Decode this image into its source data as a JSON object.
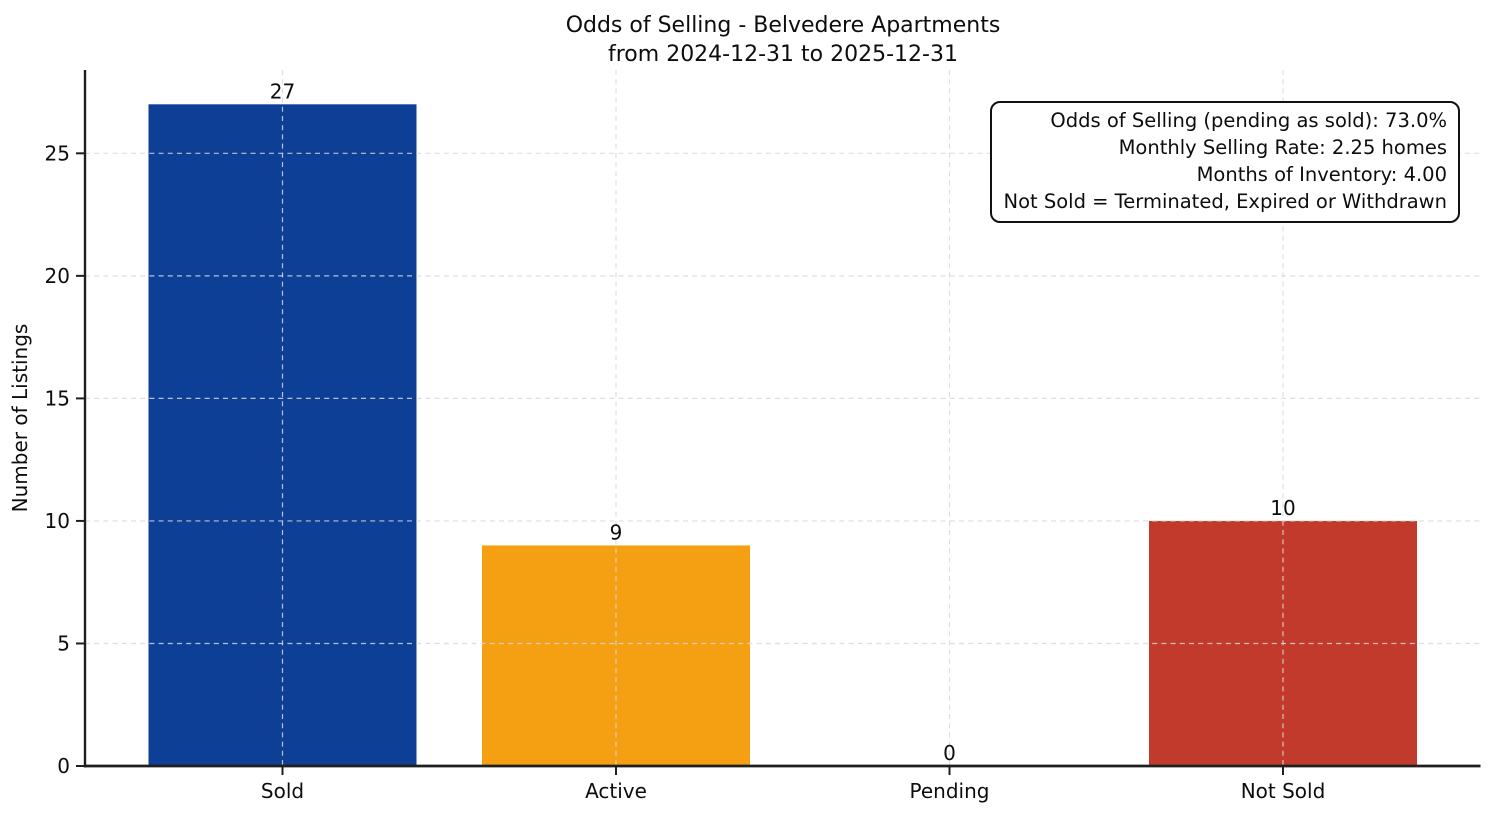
{
  "chart_data": {
    "type": "bar",
    "title_line1": "Odds of Selling - Belvedere Apartments",
    "title_line2": "from 2024-12-31 to 2025-12-31",
    "categories": [
      "Sold",
      "Active",
      "Pending",
      "Not Sold"
    ],
    "values": [
      27,
      9,
      0,
      10
    ],
    "value_labels": [
      "27",
      "9",
      "0",
      "10"
    ],
    "bar_colors": [
      "#0e3f96",
      "#f4a012",
      "#808080",
      "#c13a2c"
    ],
    "xlabel": "",
    "ylabel": "Number of Listings",
    "yticks": [
      0,
      5,
      10,
      15,
      20,
      25
    ],
    "ylim": [
      0,
      28.4
    ],
    "grid": true,
    "grid_style": "dashed",
    "legend": "none",
    "annotation_lines": [
      "Odds of Selling (pending as sold): 73.0%",
      "Monthly Selling Rate: 2.25 homes",
      "Months of Inventory: 4.00",
      "Not Sold = Terminated, Expired or Withdrawn"
    ],
    "style_colors": {
      "grid": "#d9d9d9",
      "axis": "#1f1f1f",
      "text": "#0d0d0d",
      "background": "#ffffff"
    }
  }
}
